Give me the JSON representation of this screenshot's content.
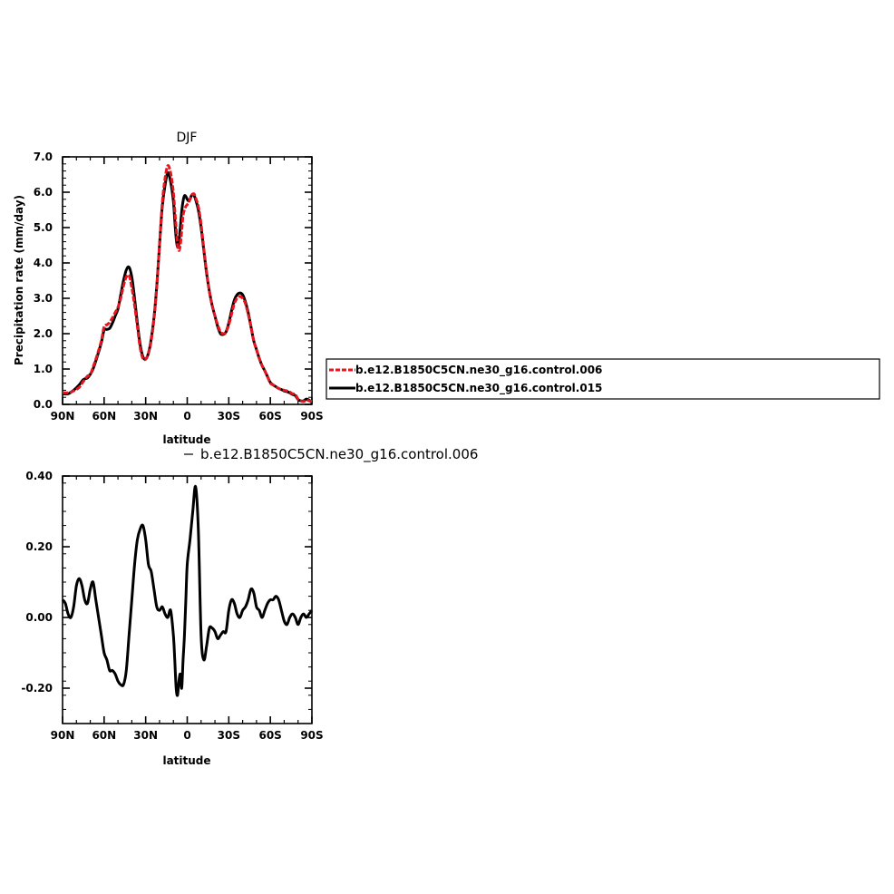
{
  "chart_data": [
    {
      "type": "line",
      "title": "DJF",
      "xlabel": "latitude",
      "ylabel": "Precipitation rate (mm/day)",
      "xlim": [
        90,
        -90
      ],
      "ylim": [
        0,
        7
      ],
      "xticks": [
        90,
        60,
        30,
        0,
        -30,
        -60,
        -90
      ],
      "xtick_labels": [
        "90N",
        "60N",
        "30N",
        "0",
        "30S",
        "60S",
        "90S"
      ],
      "yticks": [
        0,
        1,
        2,
        3,
        4,
        5,
        6,
        7
      ],
      "ytick_labels": [
        "0.0",
        "1.0",
        "2.0",
        "3.0",
        "4.0",
        "5.0",
        "6.0",
        "7.0"
      ],
      "legend_position": "right",
      "series": [
        {
          "name": "b.e12.B1850C5CN.ne30_g16.control.006",
          "color": "#e8141e",
          "dash": "dashed",
          "x": [
            90,
            86,
            82,
            78,
            75,
            72,
            70,
            68,
            65,
            62,
            60,
            58,
            56,
            54,
            52,
            50,
            48,
            46,
            44,
            42,
            40,
            38,
            36,
            34,
            32,
            30,
            28,
            26,
            24,
            22,
            20,
            18,
            16,
            14,
            12,
            10,
            9,
            8,
            7,
            6,
            5,
            4,
            3,
            2,
            1,
            0,
            -1,
            -2,
            -3,
            -4,
            -5,
            -6,
            -8,
            -10,
            -12,
            -14,
            -16,
            -18,
            -20,
            -22,
            -24,
            -26,
            -28,
            -30,
            -32,
            -34,
            -36,
            -38,
            -40,
            -42,
            -44,
            -46,
            -48,
            -50,
            -52,
            -54,
            -56,
            -58,
            -60,
            -62,
            -64,
            -66,
            -68,
            -70,
            -72,
            -74,
            -76,
            -78,
            -80,
            -82,
            -84,
            -86,
            -88,
            -90
          ],
          "y": [
            0.33,
            0.33,
            0.38,
            0.48,
            0.65,
            0.8,
            0.85,
            1.05,
            1.4,
            1.8,
            2.2,
            2.25,
            2.32,
            2.45,
            2.6,
            2.75,
            3.0,
            3.35,
            3.6,
            3.65,
            3.3,
            2.8,
            2.2,
            1.6,
            1.3,
            1.28,
            1.45,
            1.8,
            2.4,
            3.3,
            4.5,
            5.7,
            6.4,
            6.75,
            6.55,
            6.0,
            5.5,
            5.0,
            4.5,
            4.35,
            4.5,
            4.9,
            5.35,
            5.5,
            5.6,
            5.65,
            5.7,
            5.8,
            5.9,
            5.95,
            5.95,
            5.85,
            5.6,
            5.1,
            4.4,
            3.75,
            3.2,
            2.8,
            2.5,
            2.25,
            2.05,
            2.0,
            2.05,
            2.25,
            2.55,
            2.85,
            3.0,
            3.05,
            3.0,
            2.85,
            2.55,
            2.2,
            1.8,
            1.55,
            1.3,
            1.1,
            0.95,
            0.78,
            0.6,
            0.55,
            0.5,
            0.45,
            0.42,
            0.4,
            0.38,
            0.35,
            0.3,
            0.28,
            0.15,
            0.1,
            0.08,
            0.12,
            0.1,
            0.08
          ]
        },
        {
          "name": "b.e12.B1850C5CN.ne30_g16.control.015",
          "color": "#000000",
          "dash": "solid",
          "x": [
            90,
            86,
            82,
            78,
            75,
            72,
            70,
            68,
            65,
            62,
            60,
            58,
            56,
            54,
            52,
            50,
            48,
            46,
            44,
            42,
            40,
            38,
            36,
            34,
            32,
            30,
            28,
            26,
            24,
            22,
            20,
            18,
            16,
            14,
            12,
            10,
            9,
            8,
            7,
            6,
            5,
            4,
            3,
            2,
            1,
            0,
            -1,
            -2,
            -3,
            -4,
            -5,
            -6,
            -8,
            -10,
            -12,
            -14,
            -16,
            -18,
            -20,
            -22,
            -24,
            -26,
            -28,
            -30,
            -32,
            -34,
            -36,
            -38,
            -40,
            -42,
            -44,
            -46,
            -48,
            -50,
            -52,
            -54,
            -56,
            -58,
            -60,
            -62,
            -64,
            -66,
            -68,
            -70,
            -72,
            -74,
            -76,
            -78,
            -80,
            -82,
            -84,
            -86,
            -88,
            -90
          ],
          "y": [
            0.3,
            0.3,
            0.4,
            0.55,
            0.7,
            0.75,
            0.85,
            1.0,
            1.35,
            1.75,
            2.1,
            2.12,
            2.15,
            2.3,
            2.5,
            2.7,
            3.1,
            3.5,
            3.8,
            3.88,
            3.6,
            3.0,
            2.3,
            1.7,
            1.35,
            1.28,
            1.45,
            1.85,
            2.45,
            3.35,
            4.5,
            5.6,
            6.2,
            6.55,
            6.3,
            5.75,
            5.2,
            4.7,
            4.45,
            4.55,
            5.0,
            5.45,
            5.75,
            5.9,
            5.88,
            5.8,
            5.75,
            5.8,
            5.9,
            5.95,
            5.9,
            5.8,
            5.5,
            5.0,
            4.35,
            3.7,
            3.2,
            2.8,
            2.5,
            2.2,
            2.0,
            1.98,
            2.05,
            2.3,
            2.65,
            2.95,
            3.1,
            3.15,
            3.1,
            2.9,
            2.6,
            2.2,
            1.8,
            1.55,
            1.3,
            1.1,
            0.95,
            0.78,
            0.62,
            0.55,
            0.5,
            0.45,
            0.42,
            0.38,
            0.36,
            0.33,
            0.28,
            0.25,
            0.14,
            0.1,
            0.1,
            0.15,
            0.12,
            0.05
          ]
        }
      ]
    },
    {
      "type": "line",
      "title": "b.e12.B1850C5CN.ne30_g16.control.006",
      "xlabel": "latitude",
      "xlim": [
        90,
        -90
      ],
      "ylim": [
        -0.3,
        0.4
      ],
      "xticks": [
        90,
        60,
        30,
        0,
        -30,
        -60,
        -90
      ],
      "xtick_labels": [
        "90N",
        "60N",
        "30N",
        "0",
        "30S",
        "60S",
        "90S"
      ],
      "yticks": [
        -0.2,
        0,
        0.2,
        0.4
      ],
      "ytick_labels": [
        "-0.20",
        "0.00",
        "0.20",
        "0.40"
      ],
      "series": [
        {
          "color": "#000000",
          "x": [
            90,
            88,
            86,
            84,
            82,
            80,
            78,
            76,
            74,
            72,
            70,
            68,
            66,
            64,
            62,
            60,
            58,
            56,
            54,
            52,
            50,
            48,
            46,
            44,
            42,
            40,
            38,
            36,
            34,
            32,
            30,
            28,
            26,
            24,
            22,
            20,
            18,
            16,
            14,
            12,
            10,
            9,
            8,
            7,
            6,
            5,
            4,
            3,
            2,
            1,
            0,
            -2,
            -4,
            -6,
            -8,
            -10,
            -12,
            -14,
            -16,
            -18,
            -20,
            -22,
            -24,
            -26,
            -28,
            -30,
            -32,
            -34,
            -36,
            -38,
            -40,
            -42,
            -44,
            -46,
            -48,
            -50,
            -52,
            -54,
            -56,
            -58,
            -60,
            -62,
            -64,
            -66,
            -68,
            -70,
            -72,
            -74,
            -76,
            -78,
            -80,
            -82,
            -84,
            -86,
            -88,
            -90
          ],
          "y": [
            0.05,
            0.04,
            0.01,
            0.0,
            0.03,
            0.09,
            0.11,
            0.09,
            0.05,
            0.04,
            0.08,
            0.1,
            0.05,
            0.0,
            -0.05,
            -0.1,
            -0.12,
            -0.15,
            -0.15,
            -0.16,
            -0.18,
            -0.19,
            -0.19,
            -0.15,
            -0.05,
            0.05,
            0.15,
            0.22,
            0.25,
            0.26,
            0.22,
            0.15,
            0.13,
            0.08,
            0.03,
            0.02,
            0.03,
            0.01,
            0.0,
            0.02,
            -0.05,
            -0.12,
            -0.2,
            -0.22,
            -0.18,
            -0.16,
            -0.2,
            -0.12,
            -0.05,
            0.05,
            0.15,
            0.22,
            0.3,
            0.37,
            0.25,
            -0.05,
            -0.12,
            -0.08,
            -0.03,
            -0.03,
            -0.04,
            -0.06,
            -0.05,
            -0.04,
            -0.04,
            0.02,
            0.05,
            0.04,
            0.01,
            0.0,
            0.02,
            0.03,
            0.05,
            0.08,
            0.07,
            0.03,
            0.02,
            0.0,
            0.02,
            0.04,
            0.05,
            0.05,
            0.06,
            0.05,
            0.02,
            -0.01,
            -0.02,
            0.0,
            0.01,
            0.0,
            -0.02,
            0.0,
            0.01,
            0.0,
            0.01,
            0.02
          ]
        }
      ]
    }
  ]
}
